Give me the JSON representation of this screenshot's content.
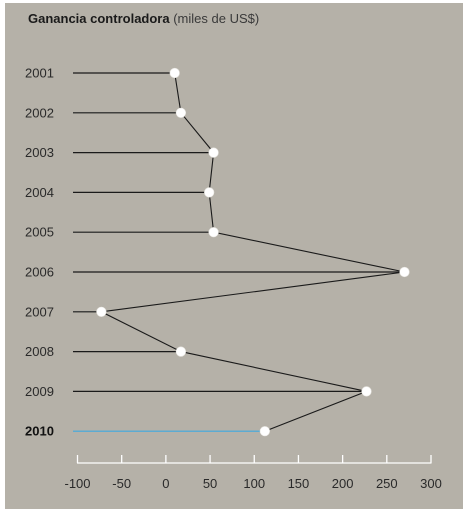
{
  "title": {
    "main": "Ganancia controladora",
    "unit": "(miles de US$)"
  },
  "chart_data": {
    "type": "line",
    "title": "Ganancia controladora (miles de US$)",
    "orientation": "horizontal",
    "categories": [
      "2001",
      "2002",
      "2003",
      "2004",
      "2005",
      "2006",
      "2007",
      "2008",
      "2009",
      "2010"
    ],
    "values": [
      10,
      17,
      54,
      49,
      54,
      270,
      -73,
      17,
      227,
      112
    ],
    "highlight_category": "2010",
    "xlim": [
      -100,
      300
    ],
    "xticks": [
      -100,
      -50,
      0,
      50,
      100,
      150,
      200,
      250,
      300
    ],
    "xtick_labels": [
      "-100",
      "-50",
      "0",
      "50",
      "100",
      "150",
      "200",
      "250",
      "300"
    ],
    "colors": {
      "background": "#b5b1a8",
      "line": "#1a1a1a",
      "highlight_line": "#3fa9e0",
      "marker": "#ffffff"
    }
  }
}
